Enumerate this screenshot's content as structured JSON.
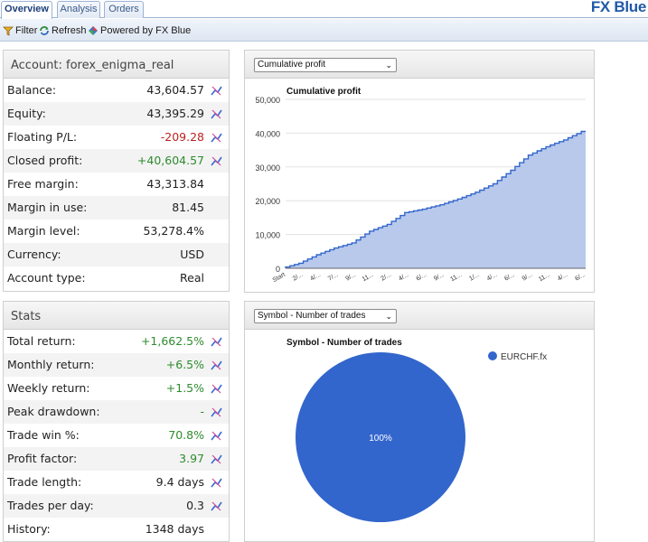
{
  "tabs": [
    {
      "label": "Overview",
      "active": true
    },
    {
      "label": "Analysis",
      "active": false
    },
    {
      "label": "Orders",
      "active": false
    }
  ],
  "logo": "FX Blue",
  "toolbar": {
    "filter": "Filter",
    "refresh": "Refresh",
    "powered": "Powered by FX Blue",
    "icons": [
      "filter-icon",
      "refresh-icon",
      "fxblue-icon"
    ]
  },
  "account": {
    "title": "Account: forex_enigma_real",
    "rows": [
      {
        "label": "Balance:",
        "value": "43,604.57",
        "tone": "neu",
        "icon": true
      },
      {
        "label": "Equity:",
        "value": "43,395.29",
        "tone": "neu",
        "icon": true
      },
      {
        "label": "Floating P/L:",
        "value": "-209.28",
        "tone": "neg",
        "icon": true
      },
      {
        "label": "Closed profit:",
        "value": "+40,604.57",
        "tone": "pos",
        "icon": true
      },
      {
        "label": "Free margin:",
        "value": "43,313.84",
        "tone": "neu",
        "icon": false
      },
      {
        "label": "Margin in use:",
        "value": "81.45",
        "tone": "neu",
        "icon": false
      },
      {
        "label": "Margin level:",
        "value": "53,278.4%",
        "tone": "neu",
        "icon": false
      },
      {
        "label": "Currency:",
        "value": "USD",
        "tone": "neu",
        "icon": false
      },
      {
        "label": "Account type:",
        "value": "Real",
        "tone": "neu",
        "icon": false
      }
    ]
  },
  "stats": {
    "title": "Stats",
    "rows": [
      {
        "label": "Total return:",
        "value": "+1,662.5%",
        "tone": "pos",
        "icon": true
      },
      {
        "label": "Monthly return:",
        "value": "+6.5%",
        "tone": "pos",
        "icon": true
      },
      {
        "label": "Weekly return:",
        "value": "+1.5%",
        "tone": "pos",
        "icon": true
      },
      {
        "label": "Peak drawdown:",
        "value": "-",
        "tone": "pos",
        "icon": true
      },
      {
        "label": "Trade win %:",
        "value": "70.8%",
        "tone": "pos",
        "icon": true
      },
      {
        "label": "Profit factor:",
        "value": "3.97",
        "tone": "pos",
        "icon": true
      },
      {
        "label": "Trade length:",
        "value": "9.4 days",
        "tone": "neu",
        "icon": true
      },
      {
        "label": "Trades per day:",
        "value": "0.3",
        "tone": "neu",
        "icon": true
      },
      {
        "label": "History:",
        "value": "1348 days",
        "tone": "neu",
        "icon": false
      }
    ]
  },
  "profit_panel": {
    "select_value": "Cumulative profit",
    "title": "Cumulative profit"
  },
  "symbol_panel": {
    "select_value": "Symbol - Number of trades",
    "title": "Symbol - Number of trades"
  },
  "colors": {
    "accent": "#3366cc",
    "fill": "#b8c9ec",
    "positive": "#2e8b2e",
    "negative": "#c02020"
  },
  "chart_data": [
    {
      "type": "area",
      "title": "Cumulative profit",
      "x": [
        "Start",
        "2/...",
        "4/...",
        "7/...",
        "9/...",
        "11...",
        "2/...",
        "4/...",
        "6/...",
        "9/...",
        "11...",
        "1/...",
        "4/...",
        "6/...",
        "9/...",
        "11...",
        "4/...",
        "6/..."
      ],
      "y": [
        0,
        1500,
        4000,
        6000,
        7500,
        11000,
        13000,
        16500,
        17500,
        18800,
        20500,
        22500,
        25000,
        29000,
        33500,
        36000,
        38000,
        40500
      ],
      "ylim": [
        0,
        50000
      ],
      "yticks": [
        "0",
        "10,000",
        "20,000",
        "30,000",
        "40,000",
        "50,000"
      ],
      "grid": true
    },
    {
      "type": "pie",
      "title": "Symbol - Number of trades",
      "slices": [
        {
          "label": "EURCHF.fx",
          "value": 100,
          "text": "100%"
        }
      ],
      "legend": "right"
    }
  ]
}
